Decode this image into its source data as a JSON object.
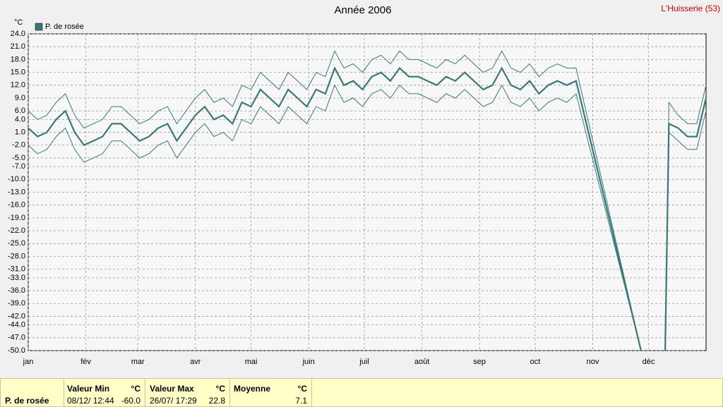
{
  "chart_data": {
    "type": "line",
    "title": "Année 2006",
    "station": "L'Huisserie (53)",
    "ylabel": "°C",
    "x": [
      0,
      5,
      10,
      15,
      20,
      25,
      30,
      35,
      40,
      45,
      50,
      55,
      60,
      65,
      70,
      75,
      80,
      85,
      90,
      95,
      100,
      105,
      110,
      115,
      120,
      125,
      130,
      135,
      140,
      145,
      150,
      155,
      160,
      165,
      170,
      175,
      180,
      185,
      190,
      195,
      200,
      205,
      210,
      215,
      220,
      225,
      230,
      235,
      240,
      245,
      250,
      255,
      260,
      265,
      270,
      275,
      280,
      285,
      290,
      295,
      330,
      336,
      343,
      345,
      350,
      355,
      360,
      365
    ],
    "series": [
      {
        "name": "P. de rosée",
        "color": "#3a7878",
        "width": 2.2,
        "values": [
          2,
          0,
          1,
          4,
          6,
          1,
          -2,
          -1,
          0,
          3,
          3,
          1,
          -1,
          0,
          2,
          3,
          -1,
          2,
          5,
          7,
          4,
          5,
          3,
          8,
          7,
          11,
          9,
          7,
          11,
          9,
          7,
          11,
          10,
          16,
          12,
          13,
          11,
          14,
          15,
          13,
          16,
          14,
          14,
          13,
          12,
          14,
          13,
          15,
          13,
          11,
          12,
          16,
          12,
          11,
          13,
          10,
          12,
          13,
          12,
          13,
          -50,
          null,
          -50,
          3,
          2,
          0,
          0,
          9
        ]
      },
      {
        "color": "#3a7878",
        "width": 1,
        "values": [
          6,
          4,
          5,
          8,
          10,
          5,
          2,
          3,
          4,
          7,
          7,
          5,
          3,
          4,
          6,
          7,
          3,
          6,
          9,
          11,
          8,
          9,
          7,
          12,
          11,
          15,
          13,
          11,
          15,
          13,
          11,
          15,
          14,
          20,
          16,
          17,
          15,
          18,
          19,
          17,
          20,
          18,
          18,
          17,
          16,
          18,
          17,
          19,
          17,
          15,
          16,
          20,
          16,
          15,
          17,
          14,
          16,
          17,
          16,
          16,
          -50,
          null,
          -50,
          8,
          5,
          3,
          3,
          12
        ]
      },
      {
        "color": "#3a7878",
        "width": 1,
        "values": [
          -2,
          -4,
          -3,
          0,
          2,
          -3,
          -6,
          -5,
          -4,
          -1,
          -1,
          -3,
          -5,
          -4,
          -2,
          -1,
          -5,
          -2,
          1,
          3,
          0,
          1,
          -1,
          4,
          3,
          7,
          5,
          3,
          7,
          5,
          3,
          7,
          6,
          12,
          8,
          9,
          7,
          10,
          11,
          9,
          12,
          10,
          10,
          9,
          8,
          10,
          9,
          11,
          9,
          7,
          8,
          12,
          8,
          7,
          9,
          6,
          8,
          9,
          8,
          10,
          -50,
          null,
          -50,
          1,
          -1,
          -3,
          -3,
          6
        ]
      }
    ],
    "xlim": [
      0,
      365
    ],
    "xticks": [
      {
        "value": 0,
        "label": "jan"
      },
      {
        "value": 31,
        "label": "fév"
      },
      {
        "value": 59,
        "label": "mar"
      },
      {
        "value": 90,
        "label": "avr"
      },
      {
        "value": 120,
        "label": "mai"
      },
      {
        "value": 151,
        "label": "juin"
      },
      {
        "value": 181,
        "label": "juil"
      },
      {
        "value": 212,
        "label": "août"
      },
      {
        "value": 243,
        "label": "sep"
      },
      {
        "value": 273,
        "label": "oct"
      },
      {
        "value": 304,
        "label": "nov"
      },
      {
        "value": 334,
        "label": "déc"
      }
    ],
    "ylim": [
      -50,
      24
    ],
    "yticks": [
      {
        "value": 24,
        "label": "24.0"
      },
      {
        "value": 21,
        "label": "21.0"
      },
      {
        "value": 18,
        "label": "18.0"
      },
      {
        "value": 15,
        "label": "15.0"
      },
      {
        "value": 12,
        "label": "12.0"
      },
      {
        "value": 9,
        "label": "9.0"
      },
      {
        "value": 6,
        "label": "6.0"
      },
      {
        "value": 4,
        "label": "4.0"
      },
      {
        "value": 1,
        "label": "1.0"
      },
      {
        "value": -2,
        "label": "-2.0"
      },
      {
        "value": -5,
        "label": "-5.0"
      },
      {
        "value": -7,
        "label": "-7.0"
      },
      {
        "value": -10,
        "label": "-10.0"
      },
      {
        "value": -13,
        "label": "-13.0"
      },
      {
        "value": -16,
        "label": "-16.0"
      },
      {
        "value": -19,
        "label": "-19.0"
      },
      {
        "value": -22,
        "label": "-22.0"
      },
      {
        "value": -25,
        "label": "-25.0"
      },
      {
        "value": -28,
        "label": "-28.0"
      },
      {
        "value": -31,
        "label": "-31.0"
      },
      {
        "value": -33,
        "label": "-33.0"
      },
      {
        "value": -36,
        "label": "-36.0"
      },
      {
        "value": -39,
        "label": "-39.0"
      },
      {
        "value": -42,
        "label": "-42.0"
      },
      {
        "value": -44,
        "label": "-44.0"
      },
      {
        "value": -47,
        "label": "-47.0"
      },
      {
        "value": -50,
        "label": "-50.0"
      }
    ],
    "grid": true
  },
  "summary": {
    "label": "P. de rosée",
    "columns": [
      {
        "title": "Valeur Min",
        "unit": "°C",
        "date": "08/12/ 12:44",
        "value": "-60.0"
      },
      {
        "title": "Valeur Max",
        "unit": "°C",
        "date": "26/07/ 17:29",
        "value": "22.8"
      },
      {
        "title": "Moyenne",
        "unit": "°C",
        "value": "7.1"
      }
    ]
  }
}
